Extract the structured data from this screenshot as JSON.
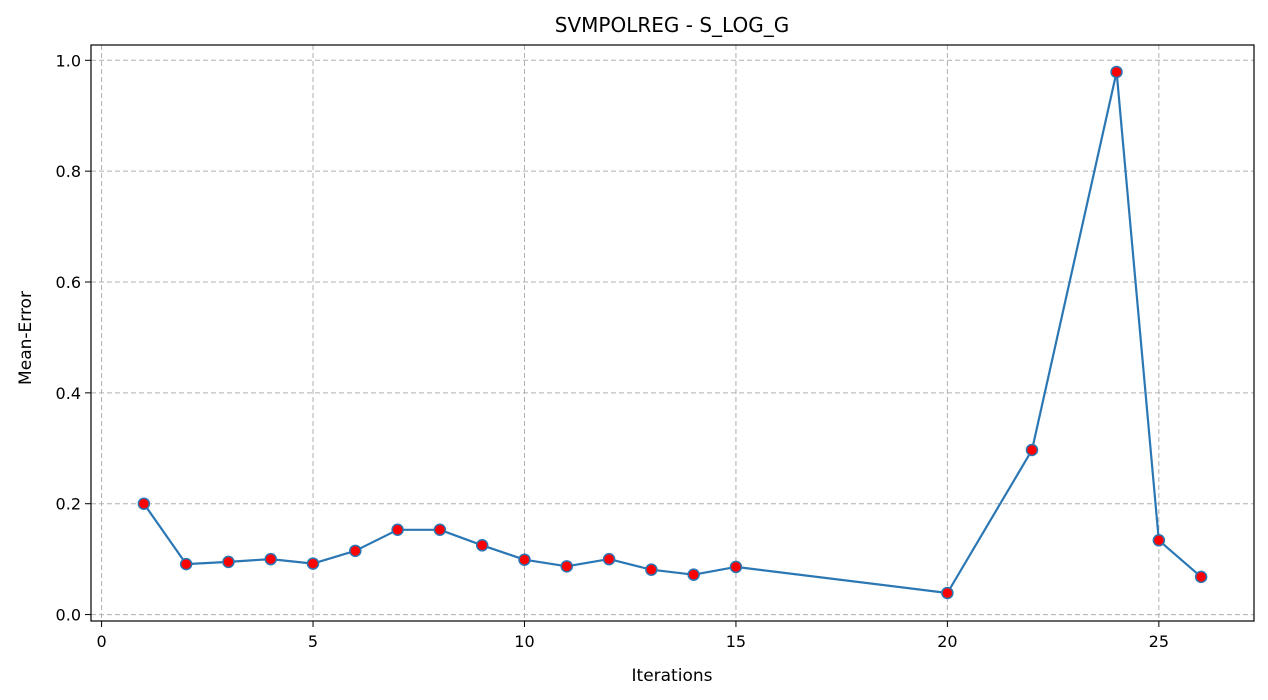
{
  "chart_data": {
    "type": "line",
    "title": "SVMPOLREG - S_LOG_G",
    "xlabel": "Iterations",
    "ylabel": "Mean-Error",
    "xlim": [
      -0.25,
      27.25
    ],
    "ylim": [
      -0.0116,
      1.0276
    ],
    "xticks": [
      0,
      5,
      10,
      15,
      20,
      25
    ],
    "yticks": [
      0.0,
      0.2,
      0.4,
      0.6,
      0.8,
      1.0
    ],
    "xtick_labels": [
      "0",
      "5",
      "10",
      "15",
      "20",
      "25"
    ],
    "ytick_labels": [
      "0.0",
      "0.2",
      "0.4",
      "0.6",
      "0.8",
      "1.0"
    ],
    "grid": true,
    "series": [
      {
        "x": [
          1,
          2,
          3,
          4,
          5,
          6,
          7,
          8,
          9,
          10,
          11,
          12,
          13,
          14,
          15,
          20,
          22,
          24,
          25,
          26
        ],
        "y": [
          0.2,
          0.091,
          0.095,
          0.1,
          0.092,
          0.115,
          0.153,
          0.153,
          0.125,
          0.099,
          0.087,
          0.1,
          0.081,
          0.072,
          0.086,
          0.039,
          0.297,
          0.979,
          0.134,
          0.068
        ],
        "line_color": "#2a77b4",
        "marker_color": "#ff0000"
      }
    ]
  }
}
